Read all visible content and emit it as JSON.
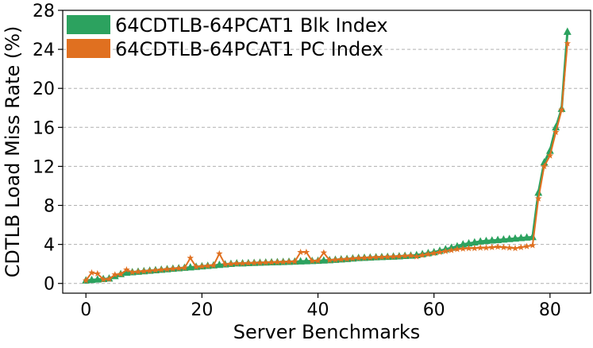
{
  "chart_data": {
    "type": "line",
    "title": "",
    "xlabel": "Server Benchmarks",
    "ylabel": "CDTLB Load Miss Rate (%)",
    "xlim": [
      -4,
      87
    ],
    "ylim": [
      -1,
      28
    ],
    "xticks": [
      0,
      20,
      40,
      60,
      80
    ],
    "yticks": [
      0,
      4,
      8,
      12,
      16,
      20,
      24,
      28
    ],
    "grid": "y-dashed",
    "legend_position": "top-left",
    "series": [
      {
        "name": "64CDTLB-64PCAT1 Blk Index",
        "color": "#2ca25f",
        "marker": "triangle",
        "values": [
          0.3,
          0.35,
          0.4,
          0.45,
          0.5,
          0.75,
          0.95,
          1.1,
          1.15,
          1.2,
          1.25,
          1.3,
          1.35,
          1.4,
          1.45,
          1.5,
          1.55,
          1.6,
          1.65,
          1.7,
          1.75,
          1.8,
          1.85,
          1.9,
          1.95,
          2.0,
          2.05,
          2.05,
          2.08,
          2.1,
          2.12,
          2.14,
          2.16,
          2.18,
          2.2,
          2.22,
          2.24,
          2.26,
          2.28,
          2.3,
          2.32,
          2.35,
          2.38,
          2.42,
          2.46,
          2.5,
          2.55,
          2.6,
          2.62,
          2.65,
          2.68,
          2.7,
          2.72,
          2.75,
          2.78,
          2.82,
          2.85,
          2.9,
          3.0,
          3.1,
          3.2,
          3.35,
          3.5,
          3.65,
          3.8,
          4.0,
          4.1,
          4.2,
          4.3,
          4.35,
          4.4,
          4.45,
          4.5,
          4.55,
          4.6,
          4.65,
          4.7,
          4.75,
          9.3,
          12.4,
          13.6,
          16.0,
          17.9,
          25.8
        ]
      },
      {
        "name": "64CDTLB-64PCAT1 PC Index",
        "color": "#e07020",
        "marker": "star",
        "values": [
          0.3,
          1.1,
          1.0,
          0.4,
          0.45,
          0.9,
          0.95,
          1.4,
          1.15,
          1.2,
          1.25,
          1.3,
          1.35,
          1.4,
          1.45,
          1.5,
          1.55,
          1.6,
          2.6,
          1.7,
          1.75,
          1.8,
          1.85,
          3.05,
          1.95,
          2.0,
          2.05,
          2.05,
          2.08,
          2.1,
          2.12,
          2.14,
          2.16,
          2.18,
          2.2,
          2.22,
          2.24,
          3.2,
          3.2,
          2.3,
          2.32,
          3.15,
          2.38,
          2.42,
          2.46,
          2.5,
          2.55,
          2.6,
          2.62,
          2.65,
          2.68,
          2.7,
          2.72,
          2.75,
          2.78,
          2.82,
          2.85,
          2.75,
          2.9,
          3.0,
          3.1,
          3.2,
          3.3,
          3.4,
          3.5,
          3.55,
          3.6,
          3.6,
          3.65,
          3.65,
          3.7,
          3.75,
          3.7,
          3.65,
          3.6,
          3.7,
          3.8,
          3.9,
          8.7,
          12.0,
          13.1,
          15.5,
          17.8,
          24.6
        ]
      }
    ]
  }
}
